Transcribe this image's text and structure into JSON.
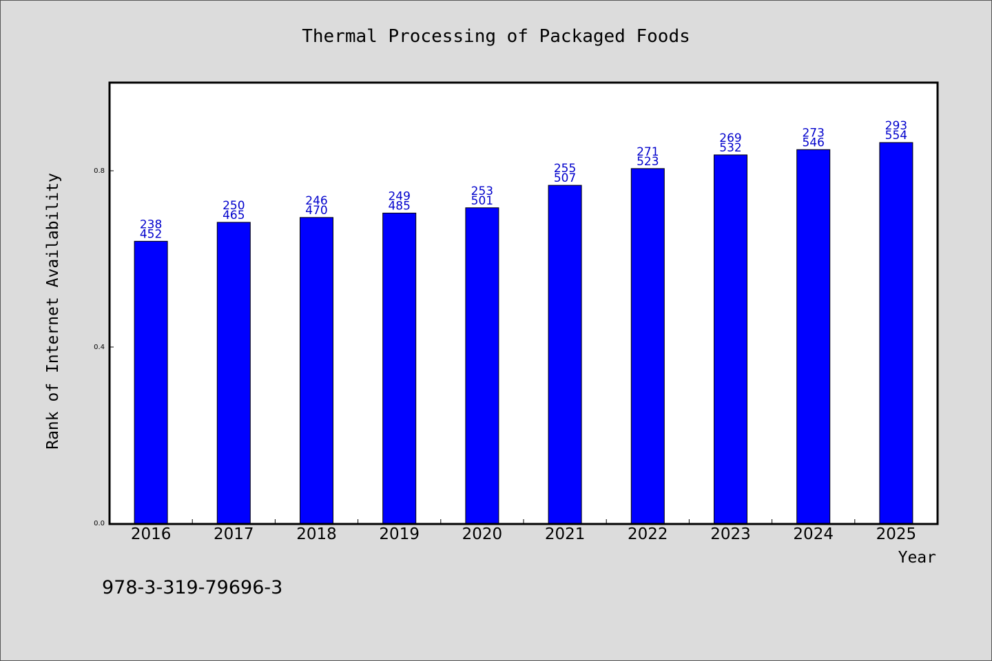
{
  "footer_code": "978-3-319-79696-3",
  "chart_data": {
    "type": "bar",
    "title": "Thermal Processing of Packaged Foods",
    "xlabel": "Year",
    "ylabel": "Rank of Internet Availability",
    "categories": [
      "2016",
      "2017",
      "2018",
      "2019",
      "2020",
      "2021",
      "2022",
      "2023",
      "2024",
      "2025"
    ],
    "values": [
      0.64,
      0.683,
      0.694,
      0.704,
      0.716,
      0.767,
      0.805,
      0.836,
      0.848,
      0.864
    ],
    "bar_labels_top": [
      "238",
      "250",
      "246",
      "249",
      "253",
      "255",
      "271",
      "269",
      "273",
      "293"
    ],
    "bar_labels_bottom": [
      "452",
      "465",
      "470",
      "485",
      "501",
      "507",
      "523",
      "532",
      "546",
      "554"
    ],
    "ylim": [
      0,
      1.0
    ],
    "yticks": [
      0.0,
      0.4,
      0.8
    ],
    "ytick_labels": [
      "0.0",
      "0.4",
      "0.8"
    ],
    "bar_color": "#0000ff",
    "label_color": "#0000cc",
    "grid": false,
    "legend": "none"
  }
}
